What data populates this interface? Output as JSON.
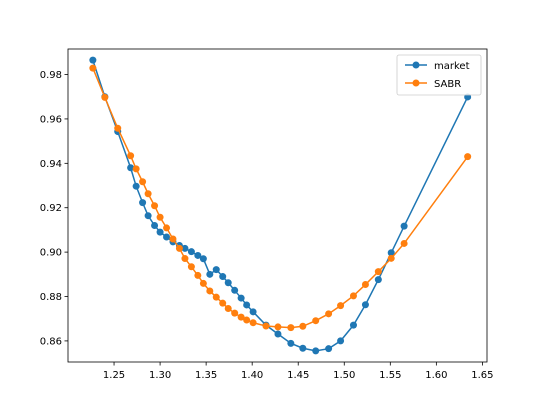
{
  "chart_data": {
    "type": "line",
    "title": "",
    "xlabel": "",
    "ylabel": "",
    "xlim": [
      1.2,
      1.655
    ],
    "ylim": [
      0.8505,
      0.9915
    ],
    "xticks": [
      1.25,
      1.3,
      1.35,
      1.4,
      1.45,
      1.5,
      1.55,
      1.6,
      1.65
    ],
    "yticks": [
      0.86,
      0.88,
      0.9,
      0.92,
      0.94,
      0.96,
      0.98
    ],
    "xtick_labels": [
      "1.25",
      "1.30",
      "1.35",
      "1.40",
      "1.45",
      "1.50",
      "1.55",
      "1.60",
      "1.65"
    ],
    "ytick_labels": [
      "0.86",
      "0.88",
      "0.90",
      "0.92",
      "0.94",
      "0.96",
      "0.98"
    ],
    "grid": false,
    "legend": "upper-right",
    "series": [
      {
        "name": "market",
        "color": "#1f77b4",
        "x": [
          1.227,
          1.24,
          1.254,
          1.268,
          1.274,
          1.281,
          1.287,
          1.294,
          1.3,
          1.307,
          1.314,
          1.321,
          1.327,
          1.334,
          1.341,
          1.347,
          1.354,
          1.361,
          1.368,
          1.374,
          1.381,
          1.388,
          1.394,
          1.401,
          1.415,
          1.428,
          1.442,
          1.455,
          1.469,
          1.483,
          1.496,
          1.51,
          1.523,
          1.537,
          1.551,
          1.565,
          1.634
        ],
        "y": [
          0.9865,
          0.97,
          0.9543,
          0.938,
          0.9297,
          0.9223,
          0.9164,
          0.912,
          0.909,
          0.9068,
          0.9046,
          0.903,
          0.9017,
          0.9002,
          0.8985,
          0.897,
          0.89,
          0.8921,
          0.889,
          0.8862,
          0.8828,
          0.8793,
          0.8762,
          0.8731,
          0.8671,
          0.8631,
          0.8589,
          0.8567,
          0.8555,
          0.8565,
          0.86,
          0.8671,
          0.8763,
          0.8876,
          0.8997,
          0.9117,
          0.9699
        ]
      },
      {
        "name": "SABR",
        "color": "#ff7f0e",
        "x": [
          1.227,
          1.24,
          1.254,
          1.268,
          1.274,
          1.281,
          1.287,
          1.294,
          1.3,
          1.307,
          1.314,
          1.321,
          1.327,
          1.334,
          1.341,
          1.347,
          1.354,
          1.361,
          1.368,
          1.374,
          1.381,
          1.388,
          1.394,
          1.401,
          1.415,
          1.428,
          1.442,
          1.455,
          1.469,
          1.483,
          1.496,
          1.51,
          1.523,
          1.537,
          1.551,
          1.565,
          1.634
        ],
        "y": [
          0.9829,
          0.9697,
          0.9558,
          0.9434,
          0.9375,
          0.9317,
          0.9263,
          0.9209,
          0.9157,
          0.9109,
          0.9059,
          0.9017,
          0.8971,
          0.8934,
          0.8895,
          0.8859,
          0.8825,
          0.8797,
          0.877,
          0.8746,
          0.8725,
          0.8707,
          0.8694,
          0.8682,
          0.8667,
          0.8663,
          0.866,
          0.8666,
          0.8691,
          0.8722,
          0.8759,
          0.8803,
          0.8854,
          0.8912,
          0.8972,
          0.9039,
          0.943
        ]
      }
    ]
  }
}
